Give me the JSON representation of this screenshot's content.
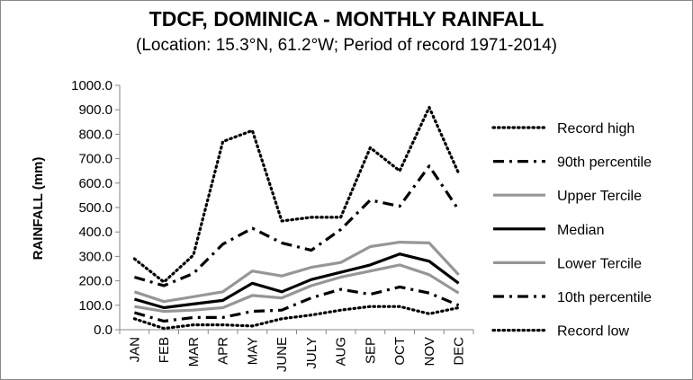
{
  "chart_data": {
    "type": "line",
    "title": "TDCF, DOMINICA - MONTHLY RAINFALL",
    "subtitle": "(Location: 15.3°N, 61.2°W; Period of record 1971-2014)",
    "xlabel": "",
    "ylabel": "RAINFALL (mm)",
    "ylim": [
      0,
      1000
    ],
    "yticks": [
      "0.0",
      "100.0",
      "200.0",
      "300.0",
      "400.0",
      "500.0",
      "600.0",
      "700.0",
      "800.0",
      "900.0",
      "1000.0"
    ],
    "categories": [
      "JAN",
      "FEB",
      "MAR",
      "APR",
      "MAY",
      "JUNE",
      "JULY",
      "AUG",
      "SEP",
      "OCT",
      "NOV",
      "DEC"
    ],
    "grid": false,
    "legend_position": "right",
    "series": [
      {
        "name": "Record high",
        "style": "dotted",
        "color": "#000000",
        "values": [
          290,
          195,
          305,
          770,
          815,
          445,
          460,
          460,
          745,
          650,
          910,
          640
        ]
      },
      {
        "name": "90th percentile",
        "style": "dashdot",
        "color": "#000000",
        "values": [
          215,
          180,
          230,
          350,
          415,
          355,
          325,
          410,
          530,
          505,
          670,
          490
        ]
      },
      {
        "name": "Upper Tercile",
        "style": "solid",
        "color": "#969696",
        "values": [
          155,
          115,
          135,
          155,
          240,
          220,
          255,
          275,
          340,
          358,
          355,
          225
        ]
      },
      {
        "name": "Median",
        "style": "solid",
        "color": "#000000",
        "values": [
          125,
          90,
          105,
          120,
          190,
          155,
          205,
          235,
          265,
          310,
          280,
          190
        ]
      },
      {
        "name": "Lower Tercile",
        "style": "solid",
        "color": "#969696",
        "values": [
          95,
          75,
          80,
          90,
          140,
          130,
          180,
          215,
          240,
          265,
          225,
          150
        ]
      },
      {
        "name": "10th percentile",
        "style": "dashdot",
        "color": "#000000",
        "values": [
          70,
          35,
          50,
          50,
          75,
          80,
          130,
          165,
          145,
          175,
          150,
          100
        ]
      },
      {
        "name": "Record low",
        "style": "dotted",
        "color": "#000000",
        "values": [
          45,
          5,
          20,
          20,
          15,
          45,
          60,
          80,
          95,
          95,
          65,
          90
        ]
      }
    ]
  }
}
